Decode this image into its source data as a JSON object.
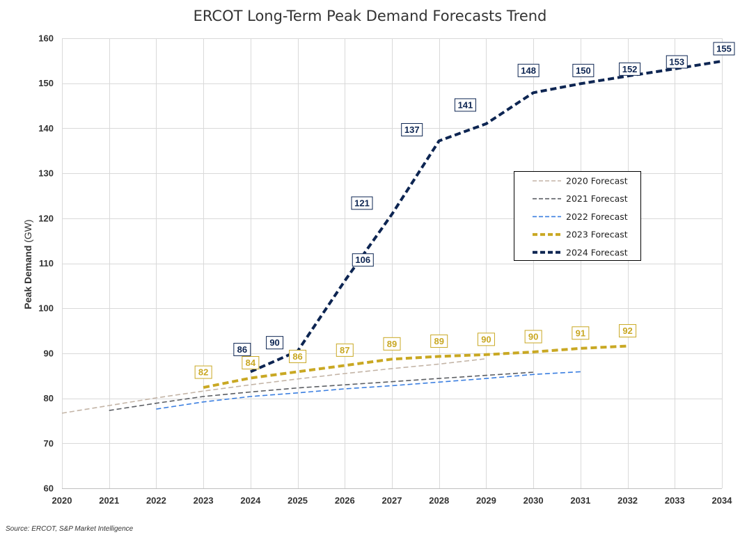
{
  "chart_data": {
    "type": "line",
    "title": "ERCOT Long-Term Peak Demand Forecasts Trend",
    "ylabel_main": "Peak Demand",
    "ylabel_unit": " (GW)",
    "xlabel": "",
    "xlim": [
      2020,
      2034
    ],
    "ylim": [
      60,
      160
    ],
    "yticks": [
      60,
      70,
      80,
      90,
      100,
      110,
      120,
      130,
      140,
      150,
      160
    ],
    "xticks": [
      2020,
      2021,
      2022,
      2023,
      2024,
      2025,
      2026,
      2027,
      2028,
      2029,
      2030,
      2031,
      2032,
      2033,
      2034
    ],
    "grid": true,
    "legend_position": "right-center",
    "series": [
      {
        "name": "2020 Forecast",
        "color": "#c3b4a6",
        "style": "thin",
        "x": [
          2020,
          2021,
          2022,
          2023,
          2024,
          2025,
          2026,
          2027,
          2028,
          2029
        ],
        "values": [
          76.7,
          78.4,
          80.1,
          81.6,
          83.0,
          84.3,
          85.5,
          86.6,
          87.6,
          88.8
        ]
      },
      {
        "name": "2021 Forecast",
        "color": "#5b5e63",
        "style": "thin",
        "x": [
          2021,
          2022,
          2023,
          2024,
          2025,
          2026,
          2027,
          2028,
          2029,
          2030
        ],
        "values": [
          77.3,
          78.9,
          80.4,
          81.4,
          82.3,
          83.0,
          83.7,
          84.4,
          85.1,
          85.8
        ]
      },
      {
        "name": "2022 Forecast",
        "color": "#3a7ee0",
        "style": "thin",
        "x": [
          2022,
          2023,
          2024,
          2025,
          2026,
          2027,
          2028,
          2029,
          2030,
          2031
        ],
        "values": [
          77.6,
          79.2,
          80.4,
          81.2,
          82.1,
          82.8,
          83.6,
          84.4,
          85.3,
          85.9
        ]
      },
      {
        "name": "2023 Forecast",
        "color": "#c9a823",
        "style": "bold",
        "x": [
          2023,
          2024,
          2025,
          2026,
          2027,
          2028,
          2029,
          2030,
          2031,
          2032
        ],
        "values": [
          82.4,
          84.5,
          85.9,
          87.3,
          88.7,
          89.3,
          89.7,
          90.3,
          91.1,
          91.6
        ],
        "labels": [
          "82",
          "84",
          "86",
          "87",
          "89",
          "89",
          "90",
          "90",
          "91",
          "92"
        ]
      },
      {
        "name": "2024 Forecast",
        "color": "#0d2552",
        "style": "bold",
        "x": [
          2024,
          2025,
          2026,
          2027,
          2028,
          2029,
          2030,
          2031,
          2032,
          2033,
          2034
        ],
        "values": [
          85.9,
          90.5,
          106.1,
          120.9,
          137.2,
          141.0,
          147.9,
          149.9,
          151.6,
          153.2,
          154.9
        ],
        "labels": [
          "86",
          "90",
          "106",
          "121",
          "137",
          "141",
          "148",
          "150",
          "152",
          "153",
          "155"
        ]
      }
    ]
  },
  "footer": {
    "source": "Source: ERCOT, S&P Market Intelligence"
  }
}
